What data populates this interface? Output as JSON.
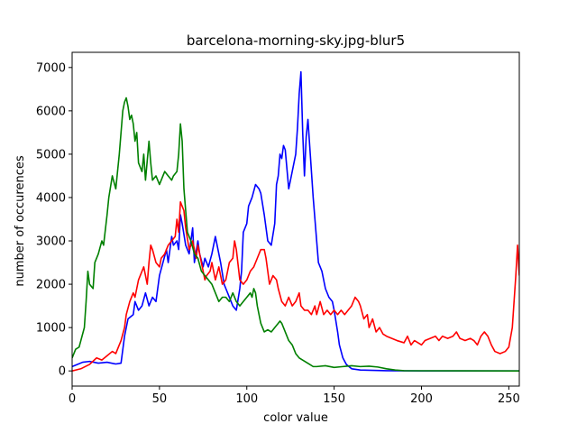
{
  "chart_data": {
    "type": "line",
    "title": "barcelona-morning-sky.jpg-blur5",
    "xlabel": "color value",
    "ylabel": "number of occurences",
    "xlim": [
      0,
      256
    ],
    "ylim": [
      -350,
      7350
    ],
    "xticks": [
      0,
      50,
      100,
      150,
      200,
      250
    ],
    "yticks": [
      0,
      1000,
      2000,
      3000,
      4000,
      5000,
      6000,
      7000
    ],
    "grid": false,
    "legend": "none",
    "series": [
      {
        "color": "#0000ff",
        "points": [
          [
            0,
            100
          ],
          [
            3,
            150
          ],
          [
            6,
            200
          ],
          [
            10,
            220
          ],
          [
            15,
            180
          ],
          [
            20,
            200
          ],
          [
            25,
            160
          ],
          [
            28,
            180
          ],
          [
            30,
            800
          ],
          [
            32,
            1200
          ],
          [
            35,
            1300
          ],
          [
            36,
            1600
          ],
          [
            38,
            1400
          ],
          [
            40,
            1500
          ],
          [
            42,
            1800
          ],
          [
            44,
            1500
          ],
          [
            46,
            1700
          ],
          [
            48,
            1600
          ],
          [
            50,
            2200
          ],
          [
            52,
            2500
          ],
          [
            54,
            2800
          ],
          [
            55,
            2500
          ],
          [
            57,
            3100
          ],
          [
            58,
            2900
          ],
          [
            60,
            3000
          ],
          [
            61,
            2800
          ],
          [
            62,
            3600
          ],
          [
            63,
            3400
          ],
          [
            65,
            2900
          ],
          [
            67,
            2700
          ],
          [
            69,
            3300
          ],
          [
            70,
            2500
          ],
          [
            72,
            3000
          ],
          [
            73,
            2700
          ],
          [
            75,
            2400
          ],
          [
            76,
            2600
          ],
          [
            78,
            2400
          ],
          [
            80,
            2700
          ],
          [
            82,
            3100
          ],
          [
            83,
            2900
          ],
          [
            85,
            2500
          ],
          [
            87,
            2000
          ],
          [
            88,
            1900
          ],
          [
            90,
            1700
          ],
          [
            92,
            1500
          ],
          [
            94,
            1400
          ],
          [
            96,
            1900
          ],
          [
            97,
            2300
          ],
          [
            98,
            3200
          ],
          [
            100,
            3400
          ],
          [
            101,
            3800
          ],
          [
            103,
            4000
          ],
          [
            105,
            4300
          ],
          [
            107,
            4200
          ],
          [
            108,
            4100
          ],
          [
            110,
            3600
          ],
          [
            112,
            3000
          ],
          [
            114,
            2900
          ],
          [
            116,
            3400
          ],
          [
            117,
            4300
          ],
          [
            118,
            4500
          ],
          [
            119,
            5000
          ],
          [
            120,
            4900
          ],
          [
            121,
            5200
          ],
          [
            122,
            5100
          ],
          [
            124,
            4200
          ],
          [
            126,
            4600
          ],
          [
            128,
            5000
          ],
          [
            129,
            5600
          ],
          [
            130,
            6400
          ],
          [
            131,
            6900
          ],
          [
            132,
            5500
          ],
          [
            133,
            4500
          ],
          [
            134,
            5400
          ],
          [
            135,
            5800
          ],
          [
            136,
            5200
          ],
          [
            138,
            4000
          ],
          [
            140,
            3000
          ],
          [
            141,
            2500
          ],
          [
            143,
            2300
          ],
          [
            145,
            1900
          ],
          [
            147,
            1700
          ],
          [
            149,
            1600
          ],
          [
            150,
            1400
          ],
          [
            152,
            900
          ],
          [
            153,
            600
          ],
          [
            155,
            300
          ],
          [
            157,
            150
          ],
          [
            160,
            50
          ],
          [
            165,
            20
          ],
          [
            180,
            5
          ],
          [
            200,
            0
          ],
          [
            256,
            0
          ]
        ]
      },
      {
        "color": "#ff0000",
        "points": [
          [
            0,
            0
          ],
          [
            5,
            50
          ],
          [
            10,
            150
          ],
          [
            14,
            300
          ],
          [
            17,
            250
          ],
          [
            20,
            350
          ],
          [
            23,
            450
          ],
          [
            25,
            400
          ],
          [
            27,
            600
          ],
          [
            28,
            700
          ],
          [
            30,
            1000
          ],
          [
            31,
            1300
          ],
          [
            33,
            1600
          ],
          [
            35,
            1800
          ],
          [
            36,
            1700
          ],
          [
            38,
            2100
          ],
          [
            40,
            2300
          ],
          [
            41,
            2400
          ],
          [
            43,
            2000
          ],
          [
            44,
            2500
          ],
          [
            45,
            2900
          ],
          [
            46,
            2800
          ],
          [
            48,
            2500
          ],
          [
            50,
            2400
          ],
          [
            51,
            2600
          ],
          [
            53,
            2700
          ],
          [
            55,
            2900
          ],
          [
            57,
            3000
          ],
          [
            59,
            3100
          ],
          [
            60,
            3500
          ],
          [
            61,
            3200
          ],
          [
            62,
            3900
          ],
          [
            64,
            3700
          ],
          [
            65,
            3300
          ],
          [
            67,
            2800
          ],
          [
            69,
            3000
          ],
          [
            71,
            2600
          ],
          [
            72,
            2900
          ],
          [
            74,
            2500
          ],
          [
            76,
            2100
          ],
          [
            77,
            2200
          ],
          [
            79,
            2300
          ],
          [
            80,
            2500
          ],
          [
            82,
            2100
          ],
          [
            84,
            2400
          ],
          [
            86,
            2000
          ],
          [
            88,
            2100
          ],
          [
            90,
            2500
          ],
          [
            92,
            2600
          ],
          [
            93,
            3000
          ],
          [
            94,
            2800
          ],
          [
            96,
            2100
          ],
          [
            98,
            2000
          ],
          [
            100,
            2100
          ],
          [
            102,
            2300
          ],
          [
            104,
            2400
          ],
          [
            106,
            2600
          ],
          [
            108,
            2800
          ],
          [
            110,
            2800
          ],
          [
            111,
            2600
          ],
          [
            113,
            2000
          ],
          [
            115,
            2200
          ],
          [
            117,
            2100
          ],
          [
            118,
            1900
          ],
          [
            120,
            1600
          ],
          [
            122,
            1500
          ],
          [
            124,
            1700
          ],
          [
            126,
            1500
          ],
          [
            128,
            1600
          ],
          [
            130,
            1800
          ],
          [
            131,
            1500
          ],
          [
            133,
            1400
          ],
          [
            135,
            1400
          ],
          [
            137,
            1300
          ],
          [
            139,
            1500
          ],
          [
            140,
            1300
          ],
          [
            142,
            1600
          ],
          [
            144,
            1300
          ],
          [
            146,
            1400
          ],
          [
            148,
            1300
          ],
          [
            150,
            1400
          ],
          [
            152,
            1300
          ],
          [
            154,
            1400
          ],
          [
            156,
            1300
          ],
          [
            158,
            1400
          ],
          [
            160,
            1500
          ],
          [
            162,
            1700
          ],
          [
            164,
            1600
          ],
          [
            165,
            1500
          ],
          [
            167,
            1200
          ],
          [
            169,
            1300
          ],
          [
            170,
            1000
          ],
          [
            172,
            1200
          ],
          [
            174,
            900
          ],
          [
            176,
            1000
          ],
          [
            178,
            850
          ],
          [
            180,
            800
          ],
          [
            183,
            750
          ],
          [
            186,
            700
          ],
          [
            190,
            650
          ],
          [
            192,
            800
          ],
          [
            194,
            600
          ],
          [
            196,
            700
          ],
          [
            198,
            650
          ],
          [
            200,
            600
          ],
          [
            202,
            700
          ],
          [
            205,
            750
          ],
          [
            208,
            800
          ],
          [
            210,
            700
          ],
          [
            212,
            800
          ],
          [
            215,
            750
          ],
          [
            218,
            800
          ],
          [
            220,
            900
          ],
          [
            222,
            750
          ],
          [
            225,
            700
          ],
          [
            228,
            750
          ],
          [
            230,
            700
          ],
          [
            232,
            600
          ],
          [
            234,
            800
          ],
          [
            236,
            900
          ],
          [
            238,
            800
          ],
          [
            240,
            600
          ],
          [
            242,
            450
          ],
          [
            245,
            400
          ],
          [
            248,
            450
          ],
          [
            250,
            550
          ],
          [
            252,
            1000
          ],
          [
            254,
            2200
          ],
          [
            255,
            2900
          ],
          [
            256,
            2200
          ]
        ]
      },
      {
        "color": "#008000",
        "points": [
          [
            0,
            300
          ],
          [
            2,
            500
          ],
          [
            4,
            550
          ],
          [
            5,
            700
          ],
          [
            7,
            1000
          ],
          [
            8,
            1600
          ],
          [
            9,
            2300
          ],
          [
            10,
            2000
          ],
          [
            12,
            1900
          ],
          [
            13,
            2500
          ],
          [
            15,
            2700
          ],
          [
            17,
            3000
          ],
          [
            18,
            2900
          ],
          [
            20,
            3600
          ],
          [
            21,
            4000
          ],
          [
            23,
            4500
          ],
          [
            25,
            4200
          ],
          [
            27,
            5000
          ],
          [
            28,
            5500
          ],
          [
            29,
            6000
          ],
          [
            30,
            6200
          ],
          [
            31,
            6300
          ],
          [
            32,
            6100
          ],
          [
            33,
            5800
          ],
          [
            34,
            5900
          ],
          [
            35,
            5700
          ],
          [
            36,
            5300
          ],
          [
            37,
            5500
          ],
          [
            38,
            4800
          ],
          [
            40,
            4600
          ],
          [
            41,
            5000
          ],
          [
            42,
            4400
          ],
          [
            44,
            5300
          ],
          [
            45,
            4800
          ],
          [
            46,
            4400
          ],
          [
            48,
            4500
          ],
          [
            50,
            4300
          ],
          [
            52,
            4500
          ],
          [
            53,
            4600
          ],
          [
            55,
            4500
          ],
          [
            57,
            4400
          ],
          [
            58,
            4500
          ],
          [
            60,
            4600
          ],
          [
            61,
            5000
          ],
          [
            62,
            5700
          ],
          [
            63,
            5300
          ],
          [
            64,
            4200
          ],
          [
            65,
            3700
          ],
          [
            66,
            3200
          ],
          [
            68,
            3000
          ],
          [
            70,
            2700
          ],
          [
            72,
            2600
          ],
          [
            74,
            2300
          ],
          [
            76,
            2200
          ],
          [
            78,
            2100
          ],
          [
            80,
            2000
          ],
          [
            82,
            1800
          ],
          [
            84,
            1600
          ],
          [
            86,
            1700
          ],
          [
            88,
            1700
          ],
          [
            90,
            1600
          ],
          [
            92,
            1800
          ],
          [
            94,
            1600
          ],
          [
            96,
            1500
          ],
          [
            98,
            1600
          ],
          [
            100,
            1700
          ],
          [
            102,
            1800
          ],
          [
            103,
            1700
          ],
          [
            104,
            1900
          ],
          [
            105,
            1800
          ],
          [
            106,
            1500
          ],
          [
            108,
            1100
          ],
          [
            110,
            900
          ],
          [
            112,
            950
          ],
          [
            114,
            900
          ],
          [
            116,
            1000
          ],
          [
            118,
            1100
          ],
          [
            119,
            1150
          ],
          [
            120,
            1100
          ],
          [
            122,
            900
          ],
          [
            124,
            700
          ],
          [
            126,
            600
          ],
          [
            128,
            400
          ],
          [
            130,
            300
          ],
          [
            132,
            250
          ],
          [
            134,
            200
          ],
          [
            136,
            150
          ],
          [
            138,
            100
          ],
          [
            140,
            100
          ],
          [
            145,
            120
          ],
          [
            150,
            80
          ],
          [
            155,
            100
          ],
          [
            160,
            120
          ],
          [
            165,
            100
          ],
          [
            170,
            110
          ],
          [
            175,
            90
          ],
          [
            180,
            50
          ],
          [
            185,
            20
          ],
          [
            190,
            5
          ],
          [
            256,
            0
          ]
        ]
      }
    ]
  }
}
